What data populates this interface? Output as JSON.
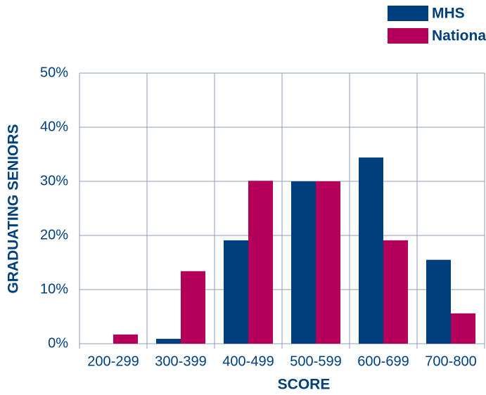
{
  "chart_data": {
    "type": "bar",
    "x_label": "SCORE",
    "y_label": "GRADUATING SENIORS",
    "categories": [
      "200-299",
      "300-399",
      "400-499",
      "500-599",
      "600-699",
      "700-800"
    ],
    "series": [
      {
        "name": "MHS",
        "color": "#003f7d",
        "values": [
          0,
          0.9,
          19.1,
          30,
          34.4,
          15.5
        ]
      },
      {
        "name": "National",
        "color": "#b5005b",
        "values": [
          1.7,
          13.4,
          30.1,
          30,
          19.1,
          5.6
        ]
      }
    ],
    "ylim": [
      0,
      50
    ],
    "yticks": [
      {
        "value": 0,
        "label": "0%"
      },
      {
        "value": 10,
        "label": "10%"
      },
      {
        "value": 20,
        "label": "20%"
      },
      {
        "value": 30,
        "label": "30%"
      },
      {
        "value": 40,
        "label": "40%"
      },
      {
        "value": 50,
        "label": "50%"
      }
    ],
    "grid": true,
    "legend": "top-right"
  }
}
